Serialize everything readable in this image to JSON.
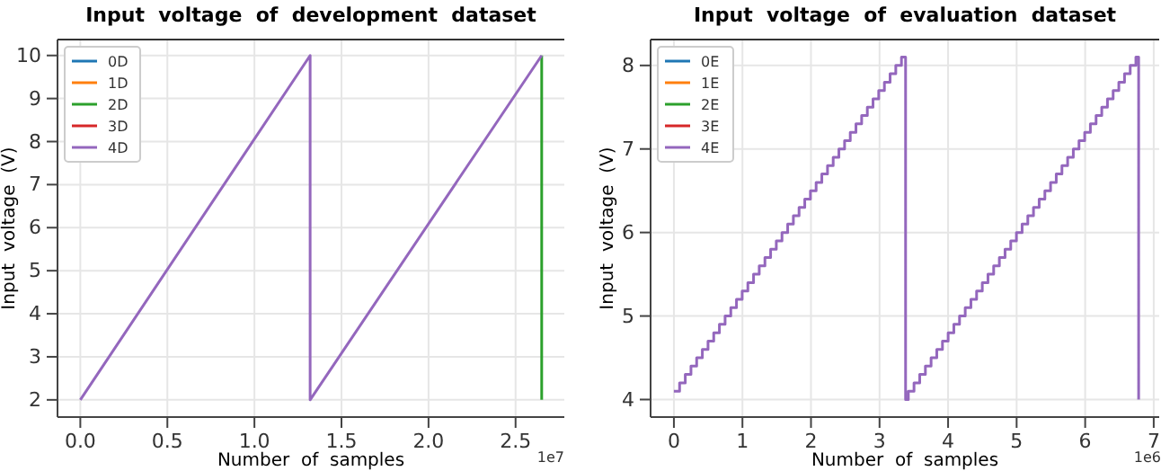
{
  "chart_data": [
    {
      "type": "line",
      "title": "Input  voltage  of  development  dataset",
      "xlabel": "Number  of  samples",
      "ylabel": "Input  voltage  (V)",
      "annotations": [
        "1e7"
      ],
      "xlim": [
        -0.131,
        2.78
      ],
      "ylim": [
        1.6,
        10.37
      ],
      "xticks": [
        {
          "value": 0,
          "label": "0.0"
        },
        0.5,
        {
          "value": 1,
          "label": "1.0"
        },
        1.5,
        {
          "value": 2,
          "label": "2.0"
        },
        2.5
      ],
      "yticks": [
        2,
        3,
        4,
        5,
        6,
        7,
        8,
        9,
        10
      ],
      "grid": true,
      "legend": "top left",
      "series": [
        {
          "name": "0D",
          "color": "#1f77b4"
        },
        {
          "name": "1D",
          "color": "#ff7f0e"
        },
        {
          "name": "2D",
          "color": "#2ca02c",
          "x": [
            2.65,
            2.65
          ],
          "values": [
            10,
            2
          ]
        },
        {
          "name": "3D",
          "color": "#d62728"
        },
        {
          "name": "4D",
          "color": "#9467bd",
          "x": [
            0,
            1.32,
            1.32,
            2.65
          ],
          "values": [
            2,
            10,
            2,
            10
          ]
        }
      ]
    },
    {
      "type": "step",
      "title": "Input  voltage  of  evaluation  dataset",
      "xlabel": "Number  of  samples",
      "ylabel": "Input  voltage  (V)",
      "annotations": [
        "1e6"
      ],
      "xlim": [
        -0.34,
        7.08
      ],
      "ylim": [
        3.79,
        8.31
      ],
      "xticks": [
        0,
        1,
        2,
        3,
        4,
        5,
        6,
        7
      ],
      "yticks": [
        4,
        5,
        6,
        7,
        8
      ],
      "grid": true,
      "legend": "top left",
      "series": [
        {
          "name": "0E",
          "color": "#1f77b4"
        },
        {
          "name": "1E",
          "color": "#ff7f0e"
        },
        {
          "name": "2E",
          "color": "#2ca02c"
        },
        {
          "name": "3E",
          "color": "#d62728"
        },
        {
          "name": "4E",
          "color": "#9467bd",
          "x": [
            0,
            0.083,
            0.166,
            0.249,
            0.332,
            0.415,
            0.498,
            0.581,
            0.664,
            0.747,
            0.83,
            0.913,
            0.996,
            1.079,
            1.162,
            1.245,
            1.328,
            1.411,
            1.494,
            1.577,
            1.66,
            1.743,
            1.826,
            1.909,
            1.992,
            2.075,
            2.158,
            2.241,
            2.324,
            2.407,
            2.49,
            2.573,
            2.656,
            2.739,
            2.822,
            2.905,
            2.988,
            3.071,
            3.154,
            3.237,
            3.32,
            3.38,
            3.42,
            3.503,
            3.586,
            3.669,
            3.752,
            3.835,
            3.918,
            4.001,
            4.084,
            4.167,
            4.25,
            4.333,
            4.416,
            4.499,
            4.582,
            4.665,
            4.748,
            4.831,
            4.914,
            4.997,
            5.08,
            5.163,
            5.246,
            5.329,
            5.412,
            5.495,
            5.578,
            5.661,
            5.744,
            5.827,
            5.91,
            5.993,
            6.076,
            6.159,
            6.242,
            6.325,
            6.408,
            6.491,
            6.574,
            6.657,
            6.74,
            6.78
          ],
          "values": [
            4.1,
            4.2,
            4.3,
            4.4,
            4.5,
            4.6,
            4.7,
            4.8,
            4.9,
            5.0,
            5.1,
            5.2,
            5.3,
            5.4,
            5.5,
            5.6,
            5.7,
            5.8,
            5.9,
            6.0,
            6.1,
            6.2,
            6.3,
            6.4,
            6.5,
            6.6,
            6.7,
            6.8,
            6.9,
            7.0,
            7.1,
            7.2,
            7.3,
            7.4,
            7.5,
            7.6,
            7.7,
            7.8,
            7.9,
            8.0,
            8.1,
            4.0,
            4.1,
            4.2,
            4.3,
            4.4,
            4.5,
            4.6,
            4.7,
            4.8,
            4.9,
            5.0,
            5.1,
            5.2,
            5.3,
            5.4,
            5.5,
            5.6,
            5.7,
            5.8,
            5.9,
            6.0,
            6.1,
            6.2,
            6.3,
            6.4,
            6.5,
            6.6,
            6.7,
            6.8,
            6.9,
            7.0,
            7.1,
            7.2,
            7.3,
            7.4,
            7.5,
            7.6,
            7.7,
            7.8,
            7.9,
            8.0,
            8.1,
            4.0
          ]
        }
      ]
    }
  ]
}
